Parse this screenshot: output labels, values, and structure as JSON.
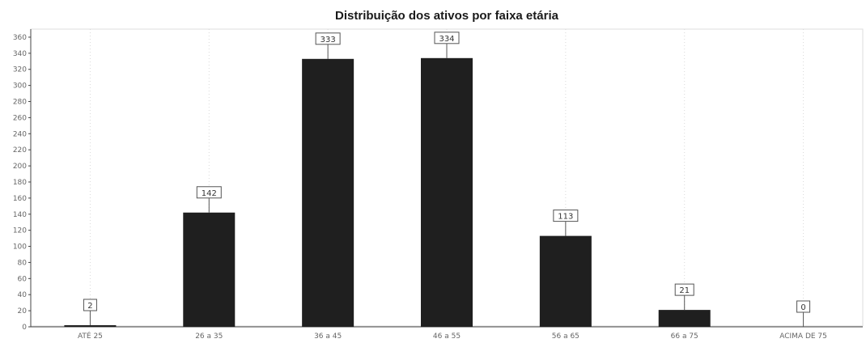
{
  "chart_data": {
    "type": "bar",
    "title": "Distribuição dos ativos por faixa etária",
    "categories": [
      "ATÉ 25",
      "26 a 35",
      "36 a 45",
      "46 a 55",
      "56 a 65",
      "66 a 75",
      "ACIMA DE 75"
    ],
    "values": [
      2,
      142,
      333,
      334,
      113,
      21,
      0
    ],
    "data_labels": [
      "2",
      "142",
      "333",
      "334",
      "113",
      "21",
      "0"
    ],
    "yticks": [
      0,
      20,
      40,
      60,
      80,
      100,
      120,
      140,
      160,
      180,
      200,
      220,
      240,
      260,
      280,
      300,
      320,
      340,
      360
    ],
    "ylim": [
      0,
      370
    ],
    "grid": "vertical dotted",
    "bar_color": "#1f1f1f"
  }
}
